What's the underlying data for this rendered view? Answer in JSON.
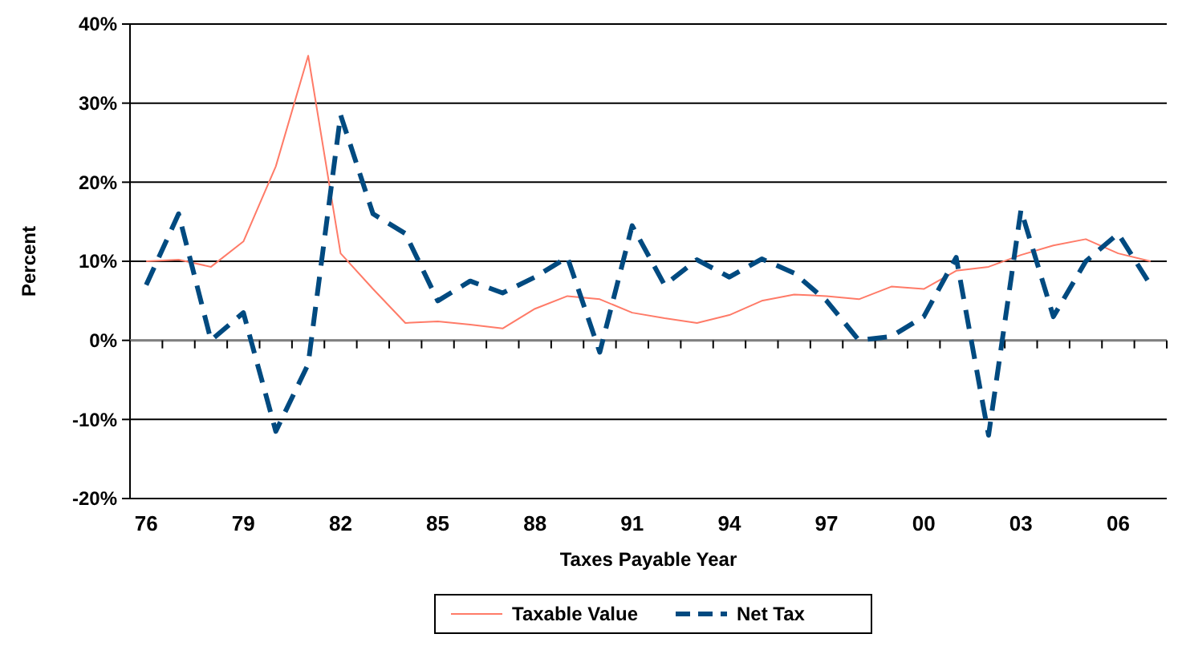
{
  "chart_data": {
    "type": "line",
    "xlabel": "Taxes Payable Year",
    "ylabel": "Percent",
    "categories": [
      "76",
      null,
      null,
      "79",
      null,
      null,
      "82",
      null,
      null,
      "85",
      null,
      null,
      "88",
      null,
      null,
      "91",
      null,
      null,
      "94",
      null,
      null,
      "97",
      null,
      null,
      "00",
      null,
      null,
      "03",
      null,
      null,
      "06",
      null
    ],
    "series": [
      {
        "name": "Taxable Value",
        "color": "#ff7b68",
        "line_style": "solid",
        "values": [
          10,
          10.2,
          9.3,
          12.5,
          22,
          36,
          11,
          6.5,
          2.2,
          2.4,
          2,
          1.5,
          4,
          5.6,
          5.2,
          3.5,
          2.8,
          2.2,
          3.2,
          5,
          5.8,
          5.6,
          5.2,
          6.8,
          6.5,
          8.8,
          9.3,
          10.8,
          12,
          12.8,
          11,
          10
        ]
      },
      {
        "name": "Net Tax",
        "color": "#004a80",
        "line_style": "dashed",
        "values": [
          7,
          16,
          0,
          3.5,
          -11.5,
          -3,
          28.5,
          16,
          13.5,
          5,
          7.5,
          6,
          8,
          10.5,
          -1.5,
          14.5,
          7,
          10.2,
          8,
          10.3,
          8.5,
          5,
          0,
          0.5,
          3,
          10.5,
          -12,
          16.5,
          3,
          10,
          13.5,
          7
        ]
      }
    ],
    "ylim": [
      -20,
      40
    ],
    "yticks": [
      {
        "value": -20,
        "label": "-20%"
      },
      {
        "value": -10,
        "label": "-10%"
      },
      {
        "value": 0,
        "label": "0%"
      },
      {
        "value": 10,
        "label": "10%"
      },
      {
        "value": 20,
        "label": "20%"
      },
      {
        "value": 30,
        "label": "30%"
      },
      {
        "value": 40,
        "label": "40%"
      }
    ],
    "grid": "y",
    "legend": "bottom",
    "marker": "none"
  }
}
